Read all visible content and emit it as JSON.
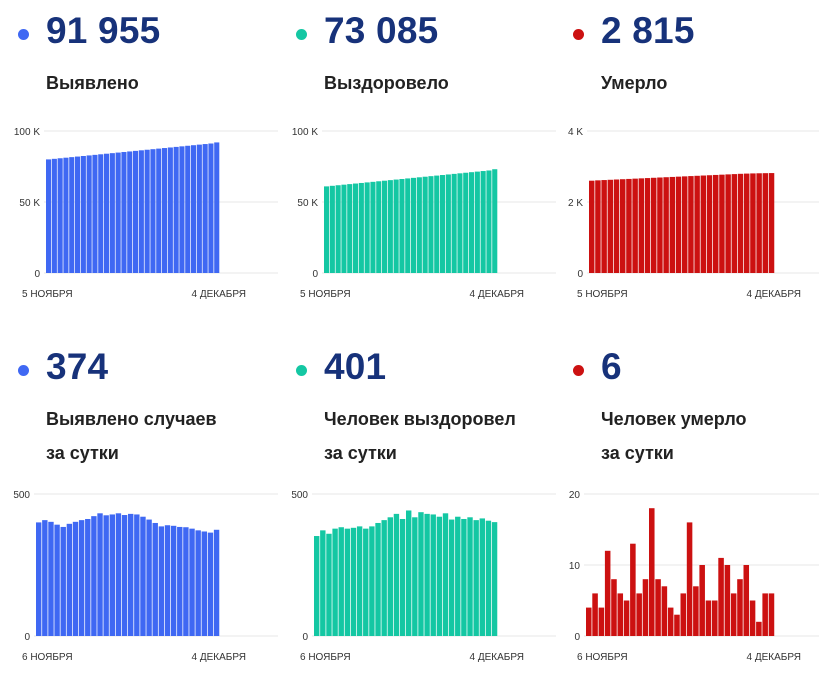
{
  "panels": [
    {
      "value": "91 955",
      "label_line1": "Выявлено",
      "label_line2": "",
      "color": "#3f68f3"
    },
    {
      "value": "73 085",
      "label_line1": "Выздоровело",
      "label_line2": "",
      "color": "#14c7a3"
    },
    {
      "value": "2 815",
      "label_line1": "Умерло",
      "label_line2": "",
      "color": "#cc1111"
    },
    {
      "value": "374",
      "label_line1": "Выявлено случаев",
      "label_line2": "за сутки",
      "color": "#3f68f3"
    },
    {
      "value": "401",
      "label_line1": "Человек выздоровел",
      "label_line2": "за сутки",
      "color": "#14c7a3"
    },
    {
      "value": "6",
      "label_line1": "Человек умерло",
      "label_line2": "за сутки",
      "color": "#cc1111"
    }
  ],
  "chart_data": [
    {
      "type": "bar",
      "title": "",
      "xlabel": "",
      "ylabel": "",
      "ylim": [
        0,
        100000
      ],
      "ytick_values": [
        0,
        50000,
        100000
      ],
      "ytick_labels": [
        "0",
        "50 K",
        "100 K"
      ],
      "x_start_label": "5 НОЯБРЯ",
      "x_end_label": "4 ДЕКАБРЯ",
      "color": "#3f68f3",
      "values": [
        80000,
        80400,
        80800,
        81200,
        81600,
        82000,
        82400,
        82800,
        83200,
        83600,
        84000,
        84400,
        84800,
        85200,
        85600,
        86000,
        86400,
        86800,
        87200,
        87600,
        88000,
        88400,
        88800,
        89200,
        89600,
        90000,
        90400,
        90800,
        91200,
        91955
      ]
    },
    {
      "type": "bar",
      "title": "",
      "xlabel": "",
      "ylabel": "",
      "ylim": [
        0,
        100000
      ],
      "ytick_values": [
        0,
        50000,
        100000
      ],
      "ytick_labels": [
        "0",
        "50 K",
        "100 K"
      ],
      "x_start_label": "5 НОЯБРЯ",
      "x_end_label": "4 ДЕКАБРЯ",
      "color": "#14c7a3",
      "values": [
        61000,
        61400,
        61800,
        62200,
        62600,
        63000,
        63400,
        63800,
        64200,
        64600,
        65000,
        65400,
        65800,
        66200,
        66600,
        67000,
        67400,
        67800,
        68200,
        68600,
        69000,
        69400,
        69800,
        70200,
        70600,
        71000,
        71400,
        71800,
        72200,
        73085
      ]
    },
    {
      "type": "bar",
      "title": "",
      "xlabel": "",
      "ylabel": "",
      "ylim": [
        0,
        4000
      ],
      "ytick_values": [
        0,
        2000,
        4000
      ],
      "ytick_labels": [
        "0",
        "2 K",
        "4 K"
      ],
      "x_start_label": "5 НОЯБРЯ",
      "x_end_label": "4 ДЕКАБРЯ",
      "color": "#cc1111",
      "values": [
        2600,
        2610,
        2618,
        2626,
        2634,
        2642,
        2650,
        2658,
        2666,
        2674,
        2682,
        2690,
        2698,
        2706,
        2714,
        2722,
        2730,
        2738,
        2746,
        2754,
        2762,
        2770,
        2778,
        2786,
        2794,
        2800,
        2805,
        2809,
        2812,
        2815
      ]
    },
    {
      "type": "bar",
      "title": "",
      "xlabel": "",
      "ylabel": "",
      "ylim": [
        0,
        500
      ],
      "ytick_values": [
        0,
        500
      ],
      "ytick_labels": [
        "0",
        "500"
      ],
      "x_start_label": "6 НОЯБРЯ",
      "x_end_label": "4 ДЕКАБРЯ",
      "color": "#3f68f3",
      "values": [
        400,
        408,
        402,
        392,
        384,
        395,
        402,
        408,
        412,
        422,
        432,
        425,
        428,
        432,
        426,
        430,
        428,
        420,
        410,
        398,
        386,
        390,
        388,
        384,
        383,
        378,
        372,
        368,
        364,
        374
      ]
    },
    {
      "type": "bar",
      "title": "",
      "xlabel": "",
      "ylabel": "",
      "ylim": [
        0,
        500
      ],
      "ytick_values": [
        0,
        500
      ],
      "ytick_labels": [
        "0",
        "500"
      ],
      "x_start_label": "6 НОЯБРЯ",
      "x_end_label": "4 ДЕКАБРЯ",
      "color": "#14c7a3",
      "values": [
        352,
        372,
        360,
        378,
        383,
        378,
        381,
        386,
        378,
        386,
        398,
        408,
        418,
        430,
        412,
        442,
        418,
        436,
        430,
        428,
        420,
        432,
        410,
        420,
        412,
        418,
        408,
        414,
        406,
        401
      ]
    },
    {
      "type": "bar",
      "title": "",
      "xlabel": "",
      "ylabel": "",
      "ylim": [
        0,
        20
      ],
      "ytick_values": [
        0,
        10,
        20
      ],
      "ytick_labels": [
        "0",
        "10",
        "20"
      ],
      "x_start_label": "6 НОЯБРЯ",
      "x_end_label": "4 ДЕКАБРЯ",
      "color": "#cc1111",
      "values": [
        4,
        6,
        4,
        12,
        8,
        6,
        5,
        13,
        6,
        8,
        18,
        8,
        7,
        4,
        3,
        6,
        16,
        7,
        10,
        5,
        5,
        11,
        10,
        6,
        8,
        10,
        5,
        2,
        6,
        6
      ]
    }
  ]
}
